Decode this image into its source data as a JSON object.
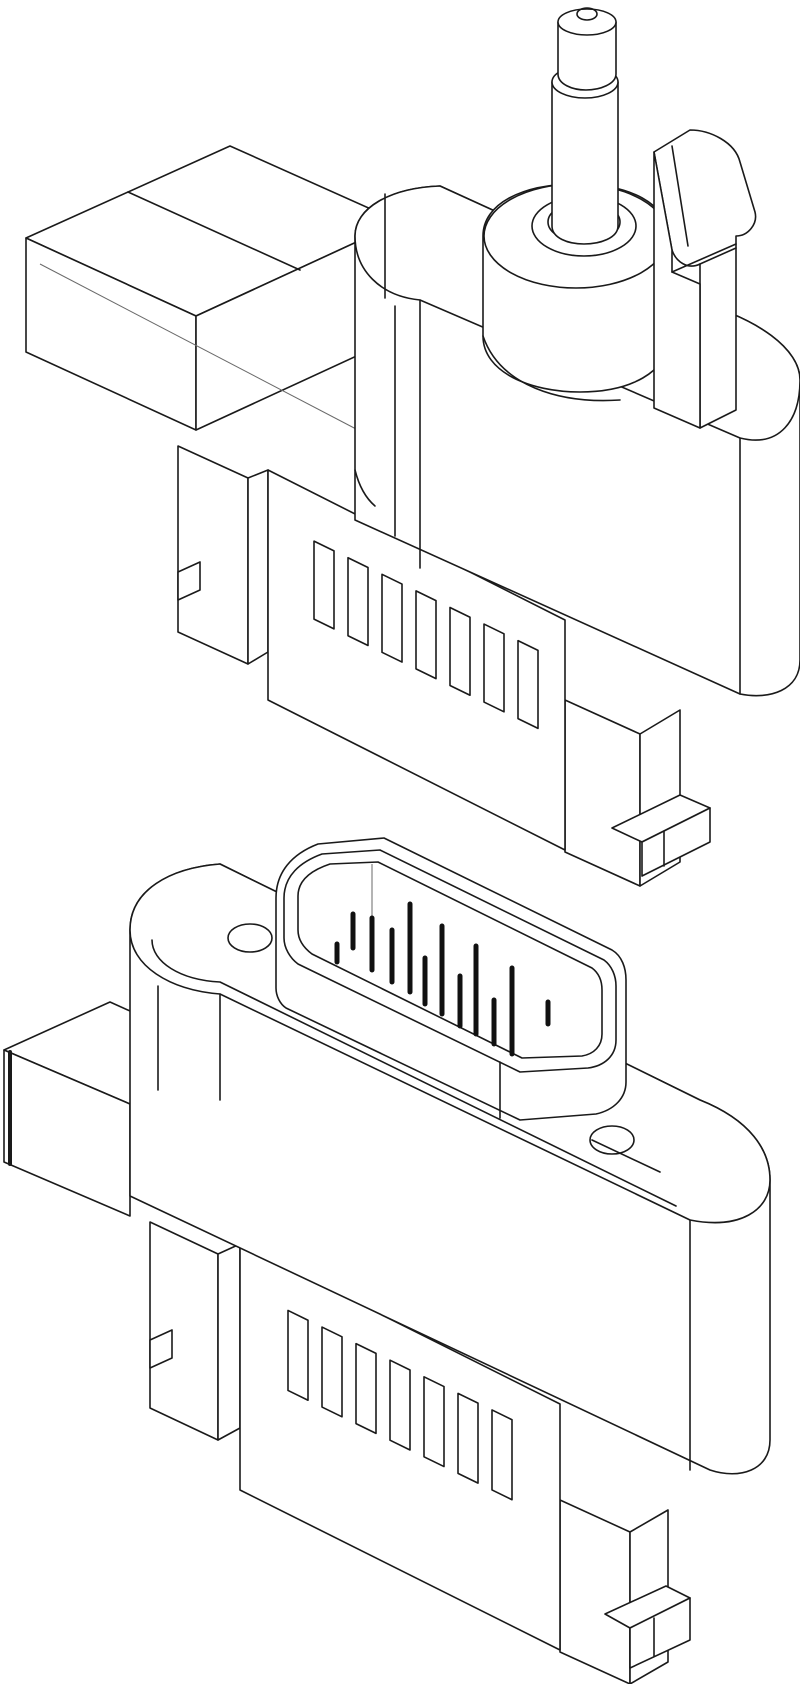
{
  "drawing": {
    "style": "isometric line drawing",
    "line_color": "#1a1a1a",
    "background_color": "#ffffff"
  },
  "parts": [
    {
      "id": "upper",
      "label": "",
      "features": [
        "cable-boot",
        "strain-relief-post",
        "latch-clip",
        "side-tabs"
      ],
      "vent_slots": 7
    },
    {
      "id": "lower",
      "label": "",
      "features": [
        "d-sub-shell",
        "mounting-holes",
        "side-tabs"
      ],
      "vent_slots": 7,
      "contact_pins": 12
    }
  ]
}
